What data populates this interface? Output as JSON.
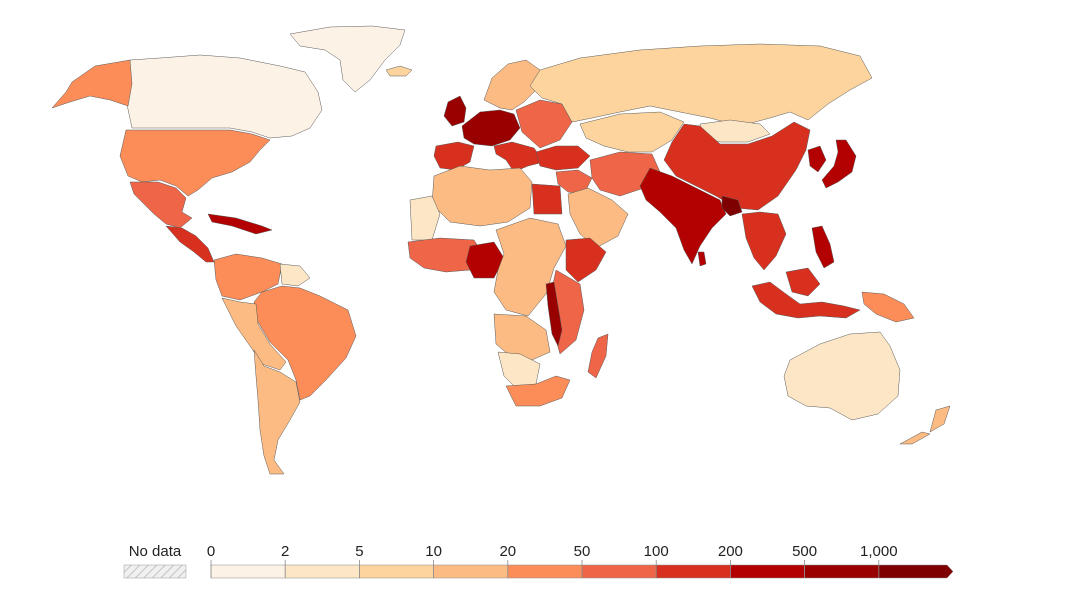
{
  "legend": {
    "no_data_label": "No data",
    "no_data_pattern": "hatched-gray",
    "ticks": [
      "0",
      "2",
      "5",
      "10",
      "20",
      "50",
      "100",
      "200",
      "500",
      "1,000"
    ],
    "bin_colors": [
      "#fdf2e6",
      "#fde6c6",
      "#fdd49e",
      "#fdbb84",
      "#fc8d59",
      "#ef6548",
      "#d7301f",
      "#b30000",
      "#990000",
      "#7f0000"
    ],
    "open_ended_arrow": true
  },
  "regions": [
    {
      "name": "greenland",
      "bin": 0
    },
    {
      "name": "canada",
      "bin": 0
    },
    {
      "name": "alaska",
      "bin": 4
    },
    {
      "name": "usa",
      "bin": 4
    },
    {
      "name": "mexico",
      "bin": 5
    },
    {
      "name": "central-america",
      "bin": 6
    },
    {
      "name": "caribbean",
      "bin": 7
    },
    {
      "name": "colombia-venezuela",
      "bin": 4
    },
    {
      "name": "guianas",
      "bin": 1
    },
    {
      "name": "brazil",
      "bin": 4
    },
    {
      "name": "peru-bolivia",
      "bin": 3
    },
    {
      "name": "southern-cone",
      "bin": 3
    },
    {
      "name": "iceland",
      "bin": 2
    },
    {
      "name": "scandinavia",
      "bin": 3
    },
    {
      "name": "uk-ireland",
      "bin": 8
    },
    {
      "name": "western-europe",
      "bin": 8
    },
    {
      "name": "iberia",
      "bin": 6
    },
    {
      "name": "italy-balkans",
      "bin": 6
    },
    {
      "name": "eastern-europe",
      "bin": 5
    },
    {
      "name": "russia",
      "bin": 2
    },
    {
      "name": "central-asia",
      "bin": 2
    },
    {
      "name": "caucasus-turkey",
      "bin": 6
    },
    {
      "name": "middle-east",
      "bin": 5
    },
    {
      "name": "arabia",
      "bin": 3
    },
    {
      "name": "iran-afghanistan",
      "bin": 5
    },
    {
      "name": "north-africa",
      "bin": 3
    },
    {
      "name": "western-sahara",
      "bin": 1
    },
    {
      "name": "egypt",
      "bin": 6
    },
    {
      "name": "west-africa",
      "bin": 5
    },
    {
      "name": "nigeria",
      "bin": 7
    },
    {
      "name": "central-africa",
      "bin": 3
    },
    {
      "name": "ethiopia",
      "bin": 6
    },
    {
      "name": "east-africa",
      "bin": 5
    },
    {
      "name": "great-lakes",
      "bin": 8
    },
    {
      "name": "angola-zambia",
      "bin": 3
    },
    {
      "name": "namibia-botswana",
      "bin": 1
    },
    {
      "name": "south-africa",
      "bin": 4
    },
    {
      "name": "madagascar",
      "bin": 5
    },
    {
      "name": "mongolia",
      "bin": 1
    },
    {
      "name": "china",
      "bin": 6
    },
    {
      "name": "pakistan-india",
      "bin": 7
    },
    {
      "name": "bangladesh",
      "bin": 9
    },
    {
      "name": "korea",
      "bin": 7
    },
    {
      "name": "japan",
      "bin": 7
    },
    {
      "name": "mainland-se-asia",
      "bin": 6
    },
    {
      "name": "philippines",
      "bin": 7
    },
    {
      "name": "indonesia",
      "bin": 6
    },
    {
      "name": "papua-new-guinea",
      "bin": 4
    },
    {
      "name": "australia",
      "bin": 1
    },
    {
      "name": "new-zealand",
      "bin": 3
    },
    {
      "name": "sri-lanka",
      "bin": 7
    }
  ]
}
